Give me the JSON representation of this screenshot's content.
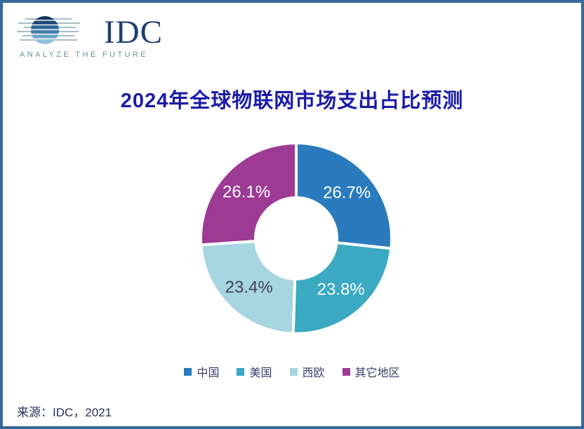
{
  "logo": {
    "text": "IDC",
    "tagline": "ANALYZE THE FUTURE",
    "globe_icon": "striped-globe-icon"
  },
  "title": "2024年全球物联网市场支出占比预测",
  "chart_data": {
    "type": "pie",
    "donut": true,
    "categories": [
      "中国",
      "美国",
      "西欧",
      "其它地区"
    ],
    "values": [
      26.7,
      23.8,
      23.4,
      26.1
    ],
    "labels": [
      "26.7%",
      "23.8%",
      "23.4%",
      "26.1%"
    ],
    "colors": [
      "#2a7bbd",
      "#3aa9c1",
      "#a7d5e1",
      "#9c3a94"
    ],
    "label_colors": [
      "#ffffff",
      "#ffffff",
      "#3e4257",
      "#ffffff"
    ],
    "unit": "%",
    "start_angle_deg": 0,
    "direction": "clockwise",
    "legend_position": "bottom",
    "title": "2024年全球物联网市场支出占比预测"
  },
  "footer": {
    "source": "来源：IDC，2021"
  },
  "style_colors": {
    "title_text": "#1b1ba6",
    "legend_text": "#3b3b6e",
    "source_text": "#2b2b5e",
    "frame_border": "#35699b",
    "logo_text": "#1d3f72",
    "logo_tagline": "#68929f"
  }
}
